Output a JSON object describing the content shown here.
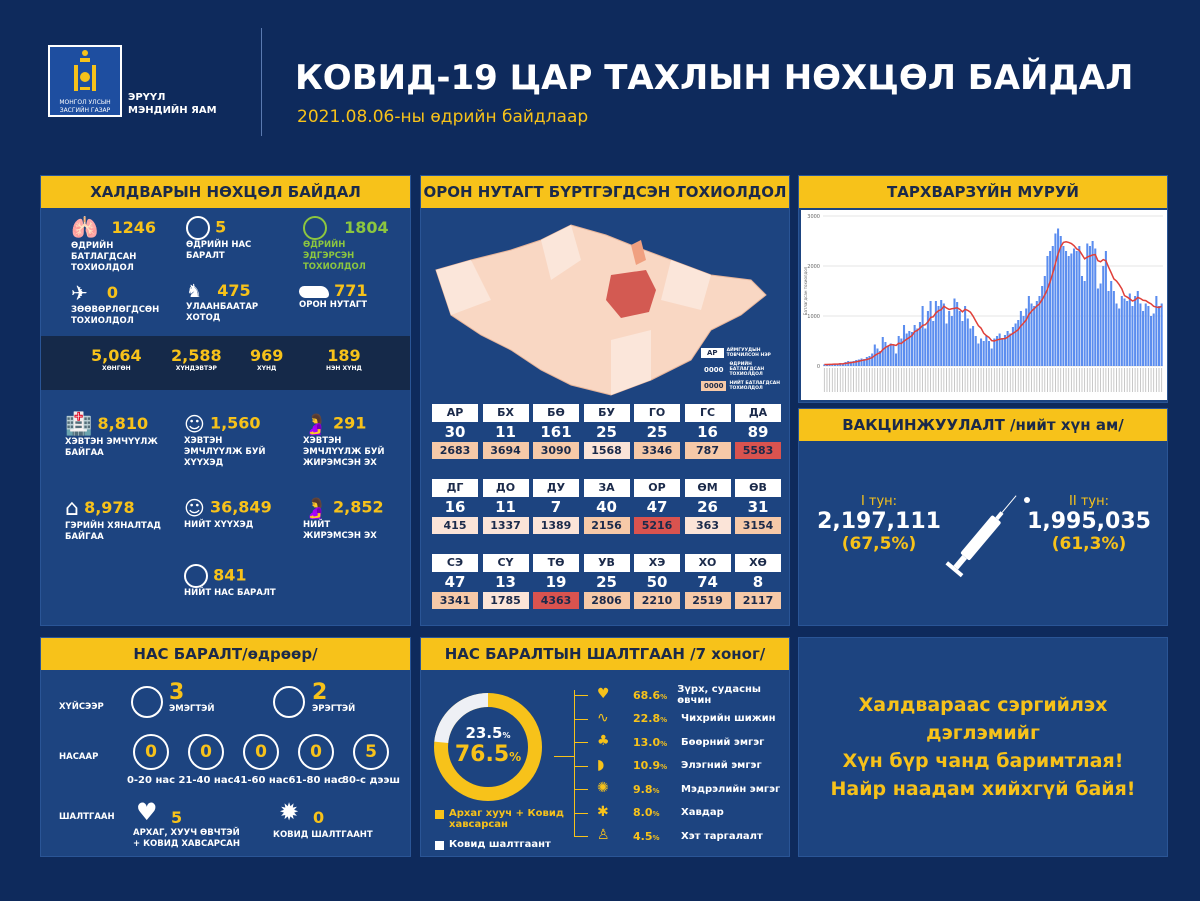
{
  "header": {
    "logo_text_1": "МОНГОЛ УЛСЫН",
    "logo_text_2": "ЗАСГИЙН ГАЗАР",
    "ministry_1": "ЭРҮҮЛ",
    "ministry_2": "МЭНДИЙН ЯАМ",
    "title": "КОВИД-19 ЦАР ТАХЛЫН НӨХЦӨЛ БАЙДАЛ",
    "date": "2021.08.06-ны өдрийн байдлаар"
  },
  "infection": {
    "title": "ХАЛДВАРЫН НӨХЦӨЛ БАЙДАЛ",
    "daily_confirmed": {
      "value": "1246",
      "label": "ӨДРИЙН БАТЛАГДСАН ТОХИОЛДОЛ"
    },
    "daily_deaths": {
      "value": "5",
      "label": "ӨДРИЙН НАС БАРАЛТ"
    },
    "daily_recovered": {
      "value": "1804",
      "label": "ӨДРИЙН ЭДГЭРСЭН ТОХИОЛДОЛ"
    },
    "imported": {
      "value": "0",
      "label": "ЗӨӨВӨРЛӨГДСӨН ТОХИОЛДОЛ"
    },
    "ulaanbaatar": {
      "value": "475",
      "label": "УЛААНБААТАР ХОТОД"
    },
    "local": {
      "value": "771",
      "label": "ОРОН НУТАГТ"
    },
    "severity": [
      {
        "value": "5,064",
        "label": "ХӨНГӨН"
      },
      {
        "value": "2,588",
        "label": "ХҮНДЭВТЭР"
      },
      {
        "value": "969",
        "label": "ХҮНД"
      },
      {
        "value": "189",
        "label": "НЭН ХҮНД"
      }
    ],
    "hospitalized": {
      "value": "8,810",
      "label": "ХЭВТЭН ЭМЧҮҮЛЖ БАЙГАА"
    },
    "hosp_children": {
      "value": "1,560",
      "label": "ХЭВТЭН ЭМЧЛҮҮЛЖ БУЙ ХҮҮХЭД"
    },
    "hosp_pregnant": {
      "value": "291",
      "label": "ХЭВТЭН ЭМЧЛҮҮЛЖ БУЙ ЖИРЭМСЭН ЭХ"
    },
    "home_monitoring": {
      "value": "8,978",
      "label": "ГЭРИЙН ХЯНАЛТАД БАЙГАА"
    },
    "total_children": {
      "value": "36,849",
      "label": "НИЙТ ХҮҮХЭД"
    },
    "total_pregnant": {
      "value": "2,852",
      "label": "НИЙТ ЖИРЭМСЭН ЭХ"
    },
    "total_deaths": {
      "value": "841",
      "label": "НИЙТ НАС БАРАЛТ"
    }
  },
  "regions": {
    "title": "ОРОН НУТАГТ БҮРТГЭГДСЭН ТОХИОЛДОЛ",
    "legend": {
      "code": "АР",
      "code_label": "АЙМГУУДЫН ТОВЧИЛСОН НЭР",
      "daily": "0000",
      "daily_label": "ӨДРИЙН БАТЛАГДСАН ТОХИОЛДОЛ",
      "total": "0000",
      "total_label": "НИЙТ БАТЛАГДСАН ТОХИОЛДОЛ"
    },
    "items": [
      {
        "code": "АР",
        "daily": "30",
        "total": "2683"
      },
      {
        "code": "БХ",
        "daily": "11",
        "total": "3694"
      },
      {
        "code": "БӨ",
        "daily": "161",
        "total": "3090"
      },
      {
        "code": "БУ",
        "daily": "25",
        "total": "1568"
      },
      {
        "code": "ГО",
        "daily": "25",
        "total": "3346"
      },
      {
        "code": "ГС",
        "daily": "16",
        "total": "787"
      },
      {
        "code": "ДА",
        "daily": "89",
        "total": "5583"
      },
      {
        "code": "ДГ",
        "daily": "16",
        "total": "415"
      },
      {
        "code": "ДО",
        "daily": "11",
        "total": "1337"
      },
      {
        "code": "ДУ",
        "daily": "7",
        "total": "1389"
      },
      {
        "code": "ЗА",
        "daily": "40",
        "total": "2156"
      },
      {
        "code": "ОР",
        "daily": "47",
        "total": "5216"
      },
      {
        "code": "ӨМ",
        "daily": "26",
        "total": "363"
      },
      {
        "code": "ӨВ",
        "daily": "31",
        "total": "3154"
      },
      {
        "code": "СЭ",
        "daily": "47",
        "total": "3341"
      },
      {
        "code": "СҮ",
        "daily": "13",
        "total": "1785"
      },
      {
        "code": "ТӨ",
        "daily": "19",
        "total": "4363"
      },
      {
        "code": "УВ",
        "daily": "25",
        "total": "2806"
      },
      {
        "code": "ХЭ",
        "daily": "50",
        "total": "2210"
      },
      {
        "code": "ХО",
        "daily": "74",
        "total": "2519"
      },
      {
        "code": "ХӨ",
        "daily": "8",
        "total": "2117"
      }
    ],
    "colors": {
      "low": "#fbe4d8",
      "mid": "#f6c9a8",
      "high": "#d9534f"
    }
  },
  "chart_data": {
    "type": "bar",
    "title": "ТАРХВАРЗҮЙН МУРУЙ",
    "ylim": [
      0,
      3000
    ],
    "yticks": [
      0,
      1000,
      2000,
      3000
    ],
    "ylabel": "Батлагдсан тохиолдол",
    "grid": true,
    "bar_color": "#5b8def",
    "line_color": "#e0403a",
    "line": "7-day moving average",
    "values": [
      30,
      30,
      40,
      40,
      50,
      40,
      60,
      50,
      80,
      100,
      90,
      100,
      120,
      130,
      150,
      140,
      180,
      200,
      250,
      430,
      350,
      300,
      580,
      480,
      400,
      450,
      420,
      250,
      600,
      550,
      820,
      650,
      700,
      680,
      820,
      750,
      880,
      1200,
      750,
      1100,
      1300,
      900,
      1300,
      1200,
      1320,
      1250,
      850,
      1100,
      1000,
      1350,
      1280,
      1100,
      900,
      1200,
      950,
      750,
      800,
      600,
      450,
      550,
      500,
      600,
      500,
      350,
      550,
      600,
      650,
      560,
      620,
      700,
      650,
      780,
      850,
      920,
      1100,
      1000,
      1150,
      1400,
      1250,
      1200,
      1300,
      1400,
      1600,
      1800,
      2200,
      2300,
      2400,
      2650,
      2750,
      2600,
      2400,
      2300,
      2200,
      2250,
      2350,
      2300,
      2400,
      1800,
      1700,
      2450,
      2400,
      2500,
      2350,
      1550,
      1650,
      2000,
      2300,
      1500,
      1700,
      1500,
      1250,
      1150,
      1400,
      1350,
      1300,
      1450,
      1200,
      1400,
      1500,
      1250,
      1100,
      1250,
      1200,
      1000,
      1050,
      1400,
      1200,
      1250
    ]
  },
  "vaccination": {
    "title": "ВАКЦИНЖУУЛАЛТ /нийт хүн ам/",
    "dose1_label": "I тун:",
    "dose1_value": "2,197,111",
    "dose1_pct": "(67,5%)",
    "dose2_label": "II тун:",
    "dose2_value": "1,995,035",
    "dose2_pct": "(61,3%)"
  },
  "deaths_daily": {
    "title": "НАС БАРАЛТ/өдрөөр/",
    "by_sex": "ХҮЙСЭЭР",
    "female": {
      "value": "3",
      "label": "ЭМЭГТЭЙ"
    },
    "male": {
      "value": "2",
      "label": "ЭРЭГТЭЙ"
    },
    "by_age": "НАСААР",
    "ages": [
      {
        "value": "0",
        "label": "0-20 нас"
      },
      {
        "value": "0",
        "label": "21-40 нас"
      },
      {
        "value": "0",
        "label": "41-60 нас"
      },
      {
        "value": "0",
        "label": "61-80 нас"
      },
      {
        "value": "5",
        "label": "80-с дээш"
      }
    ],
    "by_cause": "ШАЛТГААН",
    "chronic": {
      "value": "5",
      "label": "АРХАГ, ХУУЧ ӨВЧТЭЙ + КОВИД ХАВСАРСАН"
    },
    "covid": {
      "value": "0",
      "label": "КОВИД ШАЛТГААНТ"
    }
  },
  "causes": {
    "title": "НАС БАРАЛТЫН ШАЛТГААН /7 хоног/",
    "donut": {
      "covid_pct": 23.5,
      "chronic_pct": 76.5,
      "covid_text": "23.5",
      "chronic_text": "76.5"
    },
    "legend_chronic": "Архаг хууч + Ковид хавсарсан",
    "legend_covid": "Ковид шалтгаант",
    "items": [
      {
        "pct": "68.6",
        "label": "Зүрх, судасны өвчин",
        "icon": "heart-icon"
      },
      {
        "pct": "22.8",
        "label": "Чихрийн шижин",
        "icon": "pancreas-icon"
      },
      {
        "pct": "13.0",
        "label": "Бөөрний эмгэг",
        "icon": "kidney-icon"
      },
      {
        "pct": "10.9",
        "label": "Элэгний эмгэг",
        "icon": "liver-icon"
      },
      {
        "pct": "9.8",
        "label": "Мэдрэлийн эмгэг",
        "icon": "brain-icon"
      },
      {
        "pct": "8.0",
        "label": "Хавдар",
        "icon": "tumor-icon"
      },
      {
        "pct": "4.5",
        "label": "Хэт таргалалт",
        "icon": "obesity-icon"
      }
    ]
  },
  "message": {
    "lines": [
      "Халдвараас сэргийлэх",
      "дэглэмийг",
      "Хүн бүр чанд баримтлая!",
      "Найр наадам хийхгүй байя!"
    ]
  }
}
